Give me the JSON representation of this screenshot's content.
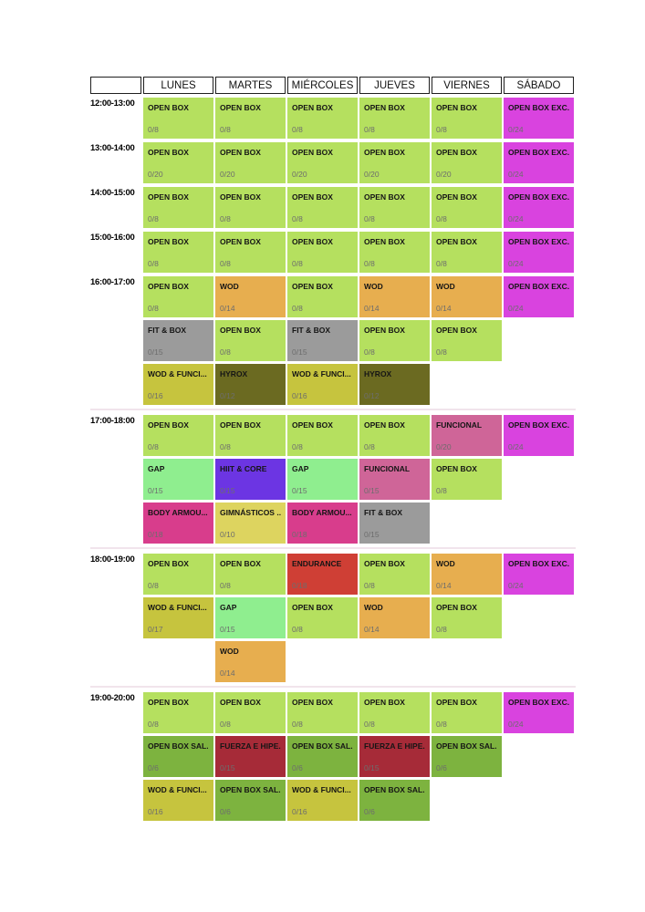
{
  "days": [
    "LUNES",
    "MARTES",
    "MIÉRCOLES",
    "JUEVES",
    "VIERNES",
    "SÁBADO"
  ],
  "palette": {
    "green": "#b5e05f",
    "magenta": "#d943df",
    "orange": "#e7ae4f",
    "gray": "#9b9b9b",
    "khaki": "#c6c43e",
    "olive": "#6b6a21",
    "mint": "#8fee8f",
    "purple": "#6c35e3",
    "pink": "#cf6598",
    "deeppink": "#d83d8c",
    "yellow": "#ddd45f",
    "red": "#cf3f35",
    "midgreen": "#7db33f",
    "darkred": "#a62b38",
    "capacity_text": "#6d6d6d",
    "header_border": "#1f1f1f"
  },
  "schedule": [
    {
      "time": "12:00-13:00",
      "divider": false,
      "rows": [
        [
          {
            "label": "OPEN BOX",
            "capacity": "0/8",
            "color": "green"
          },
          {
            "label": "OPEN BOX",
            "capacity": "0/8",
            "color": "green"
          },
          {
            "label": "OPEN BOX",
            "capacity": "0/8",
            "color": "green"
          },
          {
            "label": "OPEN BOX",
            "capacity": "0/8",
            "color": "green"
          },
          {
            "label": "OPEN BOX",
            "capacity": "0/8",
            "color": "green"
          },
          {
            "label": "OPEN BOX EXC...",
            "capacity": "0/24",
            "color": "magenta"
          }
        ]
      ]
    },
    {
      "time": "13:00-14:00",
      "divider": false,
      "rows": [
        [
          {
            "label": "OPEN BOX",
            "capacity": "0/20",
            "color": "green"
          },
          {
            "label": "OPEN BOX",
            "capacity": "0/20",
            "color": "green"
          },
          {
            "label": "OPEN BOX",
            "capacity": "0/20",
            "color": "green"
          },
          {
            "label": "OPEN BOX",
            "capacity": "0/20",
            "color": "green"
          },
          {
            "label": "OPEN BOX",
            "capacity": "0/20",
            "color": "green"
          },
          {
            "label": "OPEN BOX EXC...",
            "capacity": "0/24",
            "color": "magenta"
          }
        ]
      ]
    },
    {
      "time": "14:00-15:00",
      "divider": false,
      "rows": [
        [
          {
            "label": "OPEN BOX",
            "capacity": "0/8",
            "color": "green"
          },
          {
            "label": "OPEN BOX",
            "capacity": "0/8",
            "color": "green"
          },
          {
            "label": "OPEN BOX",
            "capacity": "0/8",
            "color": "green"
          },
          {
            "label": "OPEN BOX",
            "capacity": "0/8",
            "color": "green"
          },
          {
            "label": "OPEN BOX",
            "capacity": "0/8",
            "color": "green"
          },
          {
            "label": "OPEN BOX EXC...",
            "capacity": "0/24",
            "color": "magenta"
          }
        ]
      ]
    },
    {
      "time": "15:00-16:00",
      "divider": false,
      "rows": [
        [
          {
            "label": "OPEN BOX",
            "capacity": "0/8",
            "color": "green"
          },
          {
            "label": "OPEN BOX",
            "capacity": "0/8",
            "color": "green"
          },
          {
            "label": "OPEN BOX",
            "capacity": "0/8",
            "color": "green"
          },
          {
            "label": "OPEN BOX",
            "capacity": "0/8",
            "color": "green"
          },
          {
            "label": "OPEN BOX",
            "capacity": "0/8",
            "color": "green"
          },
          {
            "label": "OPEN BOX EXC...",
            "capacity": "0/24",
            "color": "magenta"
          }
        ]
      ]
    },
    {
      "time": "16:00-17:00",
      "divider": true,
      "rows": [
        [
          {
            "label": "OPEN BOX",
            "capacity": "0/8",
            "color": "green"
          },
          {
            "label": "WOD",
            "capacity": "0/14",
            "color": "orange"
          },
          {
            "label": "OPEN BOX",
            "capacity": "0/8",
            "color": "green"
          },
          {
            "label": "WOD",
            "capacity": "0/14",
            "color": "orange"
          },
          {
            "label": "WOD",
            "capacity": "0/14",
            "color": "orange"
          },
          {
            "label": "OPEN BOX EXC...",
            "capacity": "0/24",
            "color": "magenta"
          }
        ],
        [
          {
            "label": "FIT & BOX",
            "capacity": "0/15",
            "color": "gray"
          },
          {
            "label": "OPEN BOX",
            "capacity": "0/8",
            "color": "green"
          },
          {
            "label": "FIT & BOX",
            "capacity": "0/15",
            "color": "gray"
          },
          {
            "label": "OPEN BOX",
            "capacity": "0/8",
            "color": "green"
          },
          {
            "label": "OPEN BOX",
            "capacity": "0/8",
            "color": "green"
          },
          null
        ],
        [
          {
            "label": "WOD & FUNCI...",
            "capacity": "0/16",
            "color": "khaki"
          },
          {
            "label": "HYROX",
            "capacity": "0/12",
            "color": "olive"
          },
          {
            "label": "WOD & FUNCI...",
            "capacity": "0/16",
            "color": "khaki"
          },
          {
            "label": "HYROX",
            "capacity": "0/12",
            "color": "olive"
          },
          null,
          null
        ]
      ]
    },
    {
      "time": "17:00-18:00",
      "divider": true,
      "rows": [
        [
          {
            "label": "OPEN BOX",
            "capacity": "0/8",
            "color": "green"
          },
          {
            "label": "OPEN BOX",
            "capacity": "0/8",
            "color": "green"
          },
          {
            "label": "OPEN BOX",
            "capacity": "0/8",
            "color": "green"
          },
          {
            "label": "OPEN BOX",
            "capacity": "0/8",
            "color": "green"
          },
          {
            "label": "FUNCIONAL",
            "capacity": "0/20",
            "color": "pink"
          },
          {
            "label": "OPEN BOX EXC...",
            "capacity": "0/24",
            "color": "magenta"
          }
        ],
        [
          {
            "label": "GAP",
            "capacity": "0/15",
            "color": "mint"
          },
          {
            "label": "HIIT & CORE",
            "capacity": "0/15",
            "color": "purple"
          },
          {
            "label": "GAP",
            "capacity": "0/15",
            "color": "mint"
          },
          {
            "label": "FUNCIONAL",
            "capacity": "0/15",
            "color": "pink"
          },
          {
            "label": "OPEN BOX",
            "capacity": "0/8",
            "color": "green"
          },
          null
        ],
        [
          {
            "label": "BODY ARMOU...",
            "capacity": "0/18",
            "color": "deeppink"
          },
          {
            "label": "GIMNÁSTICOS ...",
            "capacity": "0/10",
            "color": "yellow"
          },
          {
            "label": "BODY ARMOU...",
            "capacity": "0/18",
            "color": "deeppink"
          },
          {
            "label": "FIT & BOX",
            "capacity": "0/15",
            "color": "gray"
          },
          null,
          null
        ]
      ]
    },
    {
      "time": "18:00-19:00",
      "divider": true,
      "rows": [
        [
          {
            "label": "OPEN BOX",
            "capacity": "0/8",
            "color": "green"
          },
          {
            "label": "OPEN BOX",
            "capacity": "0/8",
            "color": "green"
          },
          {
            "label": "ENDURANCE",
            "capacity": "0/18",
            "color": "red"
          },
          {
            "label": "OPEN BOX",
            "capacity": "0/8",
            "color": "green"
          },
          {
            "label": "WOD",
            "capacity": "0/14",
            "color": "orange"
          },
          {
            "label": "OPEN BOX EXC...",
            "capacity": "0/24",
            "color": "magenta"
          }
        ],
        [
          {
            "label": "WOD & FUNCI...",
            "capacity": "0/17",
            "color": "khaki"
          },
          {
            "label": "GAP",
            "capacity": "0/15",
            "color": "mint"
          },
          {
            "label": "OPEN BOX",
            "capacity": "0/8",
            "color": "green"
          },
          {
            "label": "WOD",
            "capacity": "0/14",
            "color": "orange"
          },
          {
            "label": "OPEN BOX",
            "capacity": "0/8",
            "color": "green"
          },
          null
        ],
        [
          null,
          {
            "label": "WOD",
            "capacity": "0/14",
            "color": "orange"
          },
          null,
          null,
          null,
          null
        ]
      ]
    },
    {
      "time": "19:00-20:00",
      "divider": false,
      "rows": [
        [
          {
            "label": "OPEN BOX",
            "capacity": "0/8",
            "color": "green"
          },
          {
            "label": "OPEN BOX",
            "capacity": "0/8",
            "color": "green"
          },
          {
            "label": "OPEN BOX",
            "capacity": "0/8",
            "color": "green"
          },
          {
            "label": "OPEN BOX",
            "capacity": "0/8",
            "color": "green"
          },
          {
            "label": "OPEN BOX",
            "capacity": "0/8",
            "color": "green"
          },
          {
            "label": "OPEN BOX EXC...",
            "capacity": "0/24",
            "color": "magenta"
          }
        ],
        [
          {
            "label": "OPEN BOX SAL...",
            "capacity": "0/6",
            "color": "midgreen"
          },
          {
            "label": "FUERZA E HIPE...",
            "capacity": "0/15",
            "color": "darkred"
          },
          {
            "label": "OPEN BOX SAL...",
            "capacity": "0/6",
            "color": "midgreen"
          },
          {
            "label": "FUERZA E HIPE...",
            "capacity": "0/15",
            "color": "darkred"
          },
          {
            "label": "OPEN BOX SAL...",
            "capacity": "0/6",
            "color": "midgreen"
          },
          null
        ],
        [
          {
            "label": "WOD & FUNCI...",
            "capacity": "0/16",
            "color": "khaki"
          },
          {
            "label": "OPEN BOX SAL...",
            "capacity": "0/6",
            "color": "midgreen"
          },
          {
            "label": "WOD & FUNCI...",
            "capacity": "0/16",
            "color": "khaki"
          },
          {
            "label": "OPEN BOX SAL...",
            "capacity": "0/6",
            "color": "midgreen"
          },
          null,
          null
        ]
      ]
    }
  ]
}
